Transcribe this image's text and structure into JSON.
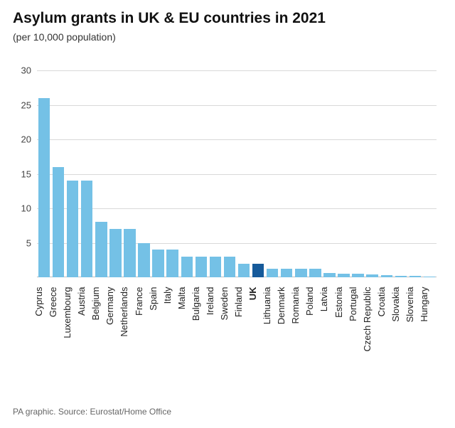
{
  "title": "Asylum grants in UK & EU countries in 2021",
  "subtitle": "(per 10,000 population)",
  "source": "PA graphic. Source: Eurostat/Home Office",
  "chart": {
    "type": "bar",
    "ylim": [
      0,
      33
    ],
    "yticks": [
      5,
      10,
      15,
      20,
      25,
      30
    ],
    "grid_color": "#d9d9d9",
    "baseline_color": "#bdbdbd",
    "background_color": "#ffffff",
    "default_bar_color": "#74c1e6",
    "highlight_bar_color": "#165a9a",
    "bar_gap_ratio": 0.18,
    "title_fontsize": 21,
    "subtitle_fontsize": 14,
    "tick_fontsize": 13,
    "source_fontsize": 12,
    "text_color": "#222222",
    "categories": [
      {
        "label": "Cyprus",
        "value": 26.0
      },
      {
        "label": "Greece",
        "value": 16.0
      },
      {
        "label": "Luxembourg",
        "value": 14.0
      },
      {
        "label": "Austria",
        "value": 14.0
      },
      {
        "label": "Belgium",
        "value": 8.0
      },
      {
        "label": "Germany",
        "value": 7.0
      },
      {
        "label": "Netherlands",
        "value": 7.0
      },
      {
        "label": "France",
        "value": 5.0
      },
      {
        "label": "Spain",
        "value": 4.0
      },
      {
        "label": "Italy",
        "value": 4.0
      },
      {
        "label": "Malta",
        "value": 3.0
      },
      {
        "label": "Bulgaria",
        "value": 3.0
      },
      {
        "label": "Ireland",
        "value": 3.0
      },
      {
        "label": "Sweden",
        "value": 3.0
      },
      {
        "label": "Finland",
        "value": 2.0
      },
      {
        "label": "UK",
        "value": 2.0,
        "highlight": true,
        "bold": true
      },
      {
        "label": "Lithuania",
        "value": 1.2
      },
      {
        "label": "Denmark",
        "value": 1.2
      },
      {
        "label": "Romania",
        "value": 1.2
      },
      {
        "label": "Poland",
        "value": 1.2
      },
      {
        "label": "Latvia",
        "value": 0.6
      },
      {
        "label": "Estonia",
        "value": 0.5
      },
      {
        "label": "Portugal",
        "value": 0.5
      },
      {
        "label": "Czech Republic",
        "value": 0.4
      },
      {
        "label": "Croatia",
        "value": 0.3
      },
      {
        "label": "Slovakia",
        "value": 0.2
      },
      {
        "label": "Slovenia",
        "value": 0.2
      },
      {
        "label": "Hungary",
        "value": 0.1
      }
    ]
  }
}
